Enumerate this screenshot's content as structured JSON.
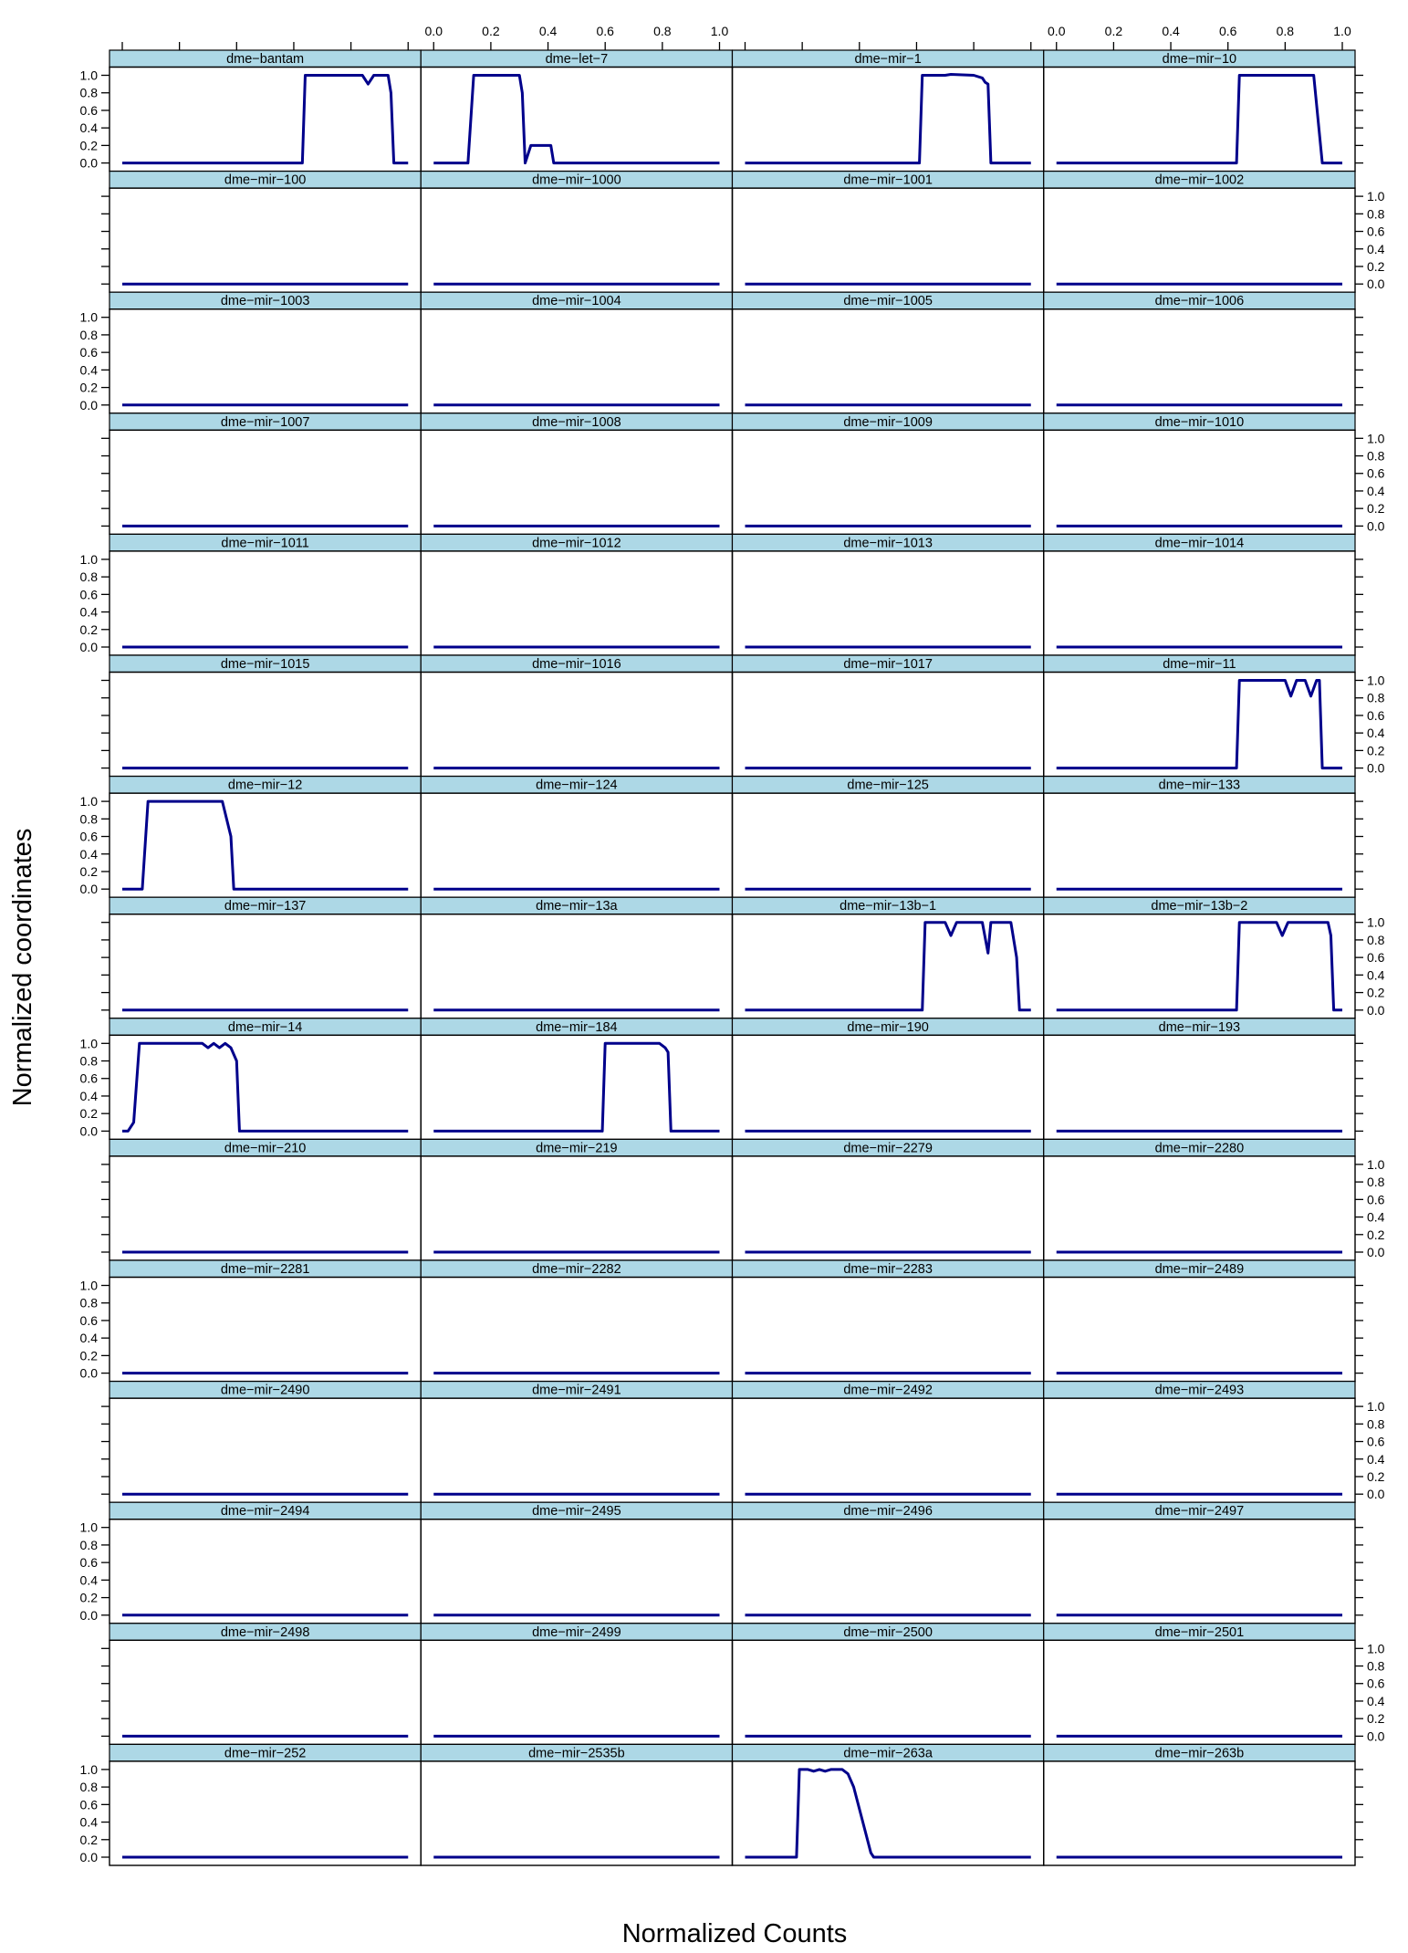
{
  "chart_data": {
    "type": "line",
    "xlabel": "Normalized Counts",
    "ylabel": "Normalized coordinates",
    "xlim": [
      0,
      1
    ],
    "ylim": [
      0,
      1
    ],
    "x_ticks": [
      "0.0",
      "0.2",
      "0.4",
      "0.6",
      "0.8",
      "1.0"
    ],
    "y_ticks": [
      "0.0",
      "0.2",
      "0.4",
      "0.6",
      "0.8",
      "1.0"
    ],
    "layout": {
      "columns": 4,
      "rows": 16
    },
    "colors": {
      "line": "#00008b",
      "strip": "#add8e6",
      "frame": "#000000"
    },
    "panels": [
      {
        "name": "dme−bantam",
        "x": [
          0,
          0.63,
          0.64,
          0.84,
          0.86,
          0.88,
          0.93,
          0.94,
          0.95,
          1
        ],
        "y": [
          0,
          0,
          1,
          1,
          0.9,
          1,
          1,
          0.8,
          0,
          0
        ]
      },
      {
        "name": "dme−let−7",
        "x": [
          0,
          0.12,
          0.14,
          0.3,
          0.31,
          0.32,
          0.34,
          0.41,
          0.42,
          1
        ],
        "y": [
          0,
          0,
          1,
          1,
          0.8,
          0,
          0.2,
          0.2,
          0,
          0
        ]
      },
      {
        "name": "dme−mir−1",
        "x": [
          0,
          0.61,
          0.62,
          0.7,
          0.72,
          0.8,
          0.83,
          0.84,
          0.85,
          0.86,
          1
        ],
        "y": [
          0,
          0,
          1,
          1,
          1.01,
          1,
          0.97,
          0.92,
          0.9,
          0,
          0
        ]
      },
      {
        "name": "dme−mir−10",
        "x": [
          0,
          0.63,
          0.64,
          0.9,
          0.93,
          0.94,
          1
        ],
        "y": [
          0,
          0,
          1,
          1,
          0,
          0,
          0
        ]
      },
      {
        "name": "dme−mir−100",
        "x": [
          0,
          1
        ],
        "y": [
          0,
          0
        ]
      },
      {
        "name": "dme−mir−1000",
        "x": [
          0,
          1
        ],
        "y": [
          0,
          0
        ]
      },
      {
        "name": "dme−mir−1001",
        "x": [
          0,
          1
        ],
        "y": [
          0,
          0
        ]
      },
      {
        "name": "dme−mir−1002",
        "x": [
          0,
          1
        ],
        "y": [
          0,
          0
        ]
      },
      {
        "name": "dme−mir−1003",
        "x": [
          0,
          1
        ],
        "y": [
          0,
          0
        ]
      },
      {
        "name": "dme−mir−1004",
        "x": [
          0,
          1
        ],
        "y": [
          0,
          0
        ]
      },
      {
        "name": "dme−mir−1005",
        "x": [
          0,
          1
        ],
        "y": [
          0,
          0
        ]
      },
      {
        "name": "dme−mir−1006",
        "x": [
          0,
          1
        ],
        "y": [
          0,
          0
        ]
      },
      {
        "name": "dme−mir−1007",
        "x": [
          0,
          1
        ],
        "y": [
          0,
          0
        ]
      },
      {
        "name": "dme−mir−1008",
        "x": [
          0,
          1
        ],
        "y": [
          0,
          0
        ]
      },
      {
        "name": "dme−mir−1009",
        "x": [
          0,
          1
        ],
        "y": [
          0,
          0
        ]
      },
      {
        "name": "dme−mir−1010",
        "x": [
          0,
          1
        ],
        "y": [
          0,
          0
        ]
      },
      {
        "name": "dme−mir−1011",
        "x": [
          0,
          1
        ],
        "y": [
          0,
          0
        ]
      },
      {
        "name": "dme−mir−1012",
        "x": [
          0,
          1
        ],
        "y": [
          0,
          0
        ]
      },
      {
        "name": "dme−mir−1013",
        "x": [
          0,
          1
        ],
        "y": [
          0,
          0
        ]
      },
      {
        "name": "dme−mir−1014",
        "x": [
          0,
          1
        ],
        "y": [
          0,
          0
        ]
      },
      {
        "name": "dme−mir−1015",
        "x": [
          0,
          1
        ],
        "y": [
          0,
          0
        ]
      },
      {
        "name": "dme−mir−1016",
        "x": [
          0,
          1
        ],
        "y": [
          0,
          0
        ]
      },
      {
        "name": "dme−mir−1017",
        "x": [
          0,
          1
        ],
        "y": [
          0,
          0
        ]
      },
      {
        "name": "dme−mir−11",
        "x": [
          0,
          0.63,
          0.64,
          0.8,
          0.82,
          0.84,
          0.87,
          0.89,
          0.91,
          0.92,
          0.93,
          1
        ],
        "y": [
          0,
          0,
          1,
          1,
          0.82,
          1,
          1,
          0.82,
          1,
          1,
          0,
          0
        ]
      },
      {
        "name": "dme−mir−12",
        "x": [
          0,
          0.07,
          0.09,
          0.35,
          0.38,
          0.39,
          1
        ],
        "y": [
          0,
          0,
          1,
          1,
          0.6,
          0,
          0
        ]
      },
      {
        "name": "dme−mir−124",
        "x": [
          0,
          1
        ],
        "y": [
          0,
          0
        ]
      },
      {
        "name": "dme−mir−125",
        "x": [
          0,
          1
        ],
        "y": [
          0,
          0
        ]
      },
      {
        "name": "dme−mir−133",
        "x": [
          0,
          1
        ],
        "y": [
          0,
          0
        ]
      },
      {
        "name": "dme−mir−137",
        "x": [
          0,
          1
        ],
        "y": [
          0,
          0
        ]
      },
      {
        "name": "dme−mir−13a",
        "x": [
          0,
          1
        ],
        "y": [
          0,
          0
        ]
      },
      {
        "name": "dme−mir−13b−1",
        "x": [
          0,
          0.62,
          0.63,
          0.7,
          0.72,
          0.74,
          0.83,
          0.85,
          0.86,
          0.93,
          0.95,
          0.96,
          1
        ],
        "y": [
          0,
          0,
          1,
          1,
          0.85,
          1,
          1,
          0.65,
          1,
          1,
          0.6,
          0,
          0
        ]
      },
      {
        "name": "dme−mir−13b−2",
        "x": [
          0,
          0.63,
          0.64,
          0.77,
          0.79,
          0.81,
          0.95,
          0.96,
          0.97,
          1
        ],
        "y": [
          0,
          0,
          1,
          1,
          0.85,
          1,
          1,
          0.85,
          0,
          0
        ]
      },
      {
        "name": "dme−mir−14",
        "x": [
          0,
          0.02,
          0.04,
          0.06,
          0.28,
          0.3,
          0.32,
          0.34,
          0.36,
          0.38,
          0.4,
          0.41,
          1
        ],
        "y": [
          0,
          0,
          0.1,
          1,
          1,
          0.95,
          1,
          0.95,
          1,
          0.95,
          0.8,
          0,
          0
        ]
      },
      {
        "name": "dme−mir−184",
        "x": [
          0,
          0.59,
          0.6,
          0.7,
          0.75,
          0.79,
          0.81,
          0.82,
          0.83,
          1
        ],
        "y": [
          0,
          0,
          1,
          1,
          1,
          1,
          0.95,
          0.9,
          0,
          0
        ]
      },
      {
        "name": "dme−mir−190",
        "x": [
          0,
          1
        ],
        "y": [
          0,
          0
        ]
      },
      {
        "name": "dme−mir−193",
        "x": [
          0,
          1
        ],
        "y": [
          0,
          0
        ]
      },
      {
        "name": "dme−mir−210",
        "x": [
          0,
          1
        ],
        "y": [
          0,
          0
        ]
      },
      {
        "name": "dme−mir−219",
        "x": [
          0,
          1
        ],
        "y": [
          0,
          0
        ]
      },
      {
        "name": "dme−mir−2279",
        "x": [
          0,
          1
        ],
        "y": [
          0,
          0
        ]
      },
      {
        "name": "dme−mir−2280",
        "x": [
          0,
          1
        ],
        "y": [
          0,
          0
        ]
      },
      {
        "name": "dme−mir−2281",
        "x": [
          0,
          1
        ],
        "y": [
          0,
          0
        ]
      },
      {
        "name": "dme−mir−2282",
        "x": [
          0,
          1
        ],
        "y": [
          0,
          0
        ]
      },
      {
        "name": "dme−mir−2283",
        "x": [
          0,
          1
        ],
        "y": [
          0,
          0
        ]
      },
      {
        "name": "dme−mir−2489",
        "x": [
          0,
          1
        ],
        "y": [
          0,
          0
        ]
      },
      {
        "name": "dme−mir−2490",
        "x": [
          0,
          1
        ],
        "y": [
          0,
          0
        ]
      },
      {
        "name": "dme−mir−2491",
        "x": [
          0,
          1
        ],
        "y": [
          0,
          0
        ]
      },
      {
        "name": "dme−mir−2492",
        "x": [
          0,
          1
        ],
        "y": [
          0,
          0
        ]
      },
      {
        "name": "dme−mir−2493",
        "x": [
          0,
          1
        ],
        "y": [
          0,
          0
        ]
      },
      {
        "name": "dme−mir−2494",
        "x": [
          0,
          1
        ],
        "y": [
          0,
          0
        ]
      },
      {
        "name": "dme−mir−2495",
        "x": [
          0,
          1
        ],
        "y": [
          0,
          0
        ]
      },
      {
        "name": "dme−mir−2496",
        "x": [
          0,
          1
        ],
        "y": [
          0,
          0
        ]
      },
      {
        "name": "dme−mir−2497",
        "x": [
          0,
          1
        ],
        "y": [
          0,
          0
        ]
      },
      {
        "name": "dme−mir−2498",
        "x": [
          0,
          1
        ],
        "y": [
          0,
          0
        ]
      },
      {
        "name": "dme−mir−2499",
        "x": [
          0,
          1
        ],
        "y": [
          0,
          0
        ]
      },
      {
        "name": "dme−mir−2500",
        "x": [
          0,
          1
        ],
        "y": [
          0,
          0
        ]
      },
      {
        "name": "dme−mir−2501",
        "x": [
          0,
          1
        ],
        "y": [
          0,
          0
        ]
      },
      {
        "name": "dme−mir−252",
        "x": [
          0,
          1
        ],
        "y": [
          0,
          0
        ]
      },
      {
        "name": "dme−mir−2535b",
        "x": [
          0,
          1
        ],
        "y": [
          0,
          0
        ]
      },
      {
        "name": "dme−mir−263a",
        "x": [
          0,
          0.18,
          0.19,
          0.22,
          0.24,
          0.26,
          0.28,
          0.3,
          0.34,
          0.36,
          0.38,
          0.4,
          0.42,
          0.44,
          0.45,
          1
        ],
        "y": [
          0,
          0,
          1,
          1,
          0.98,
          1,
          0.98,
          1,
          1,
          0.95,
          0.8,
          0.55,
          0.3,
          0.05,
          0,
          0
        ]
      },
      {
        "name": "dme−mir−263b",
        "x": [
          0,
          1
        ],
        "y": [
          0,
          0
        ]
      }
    ]
  }
}
